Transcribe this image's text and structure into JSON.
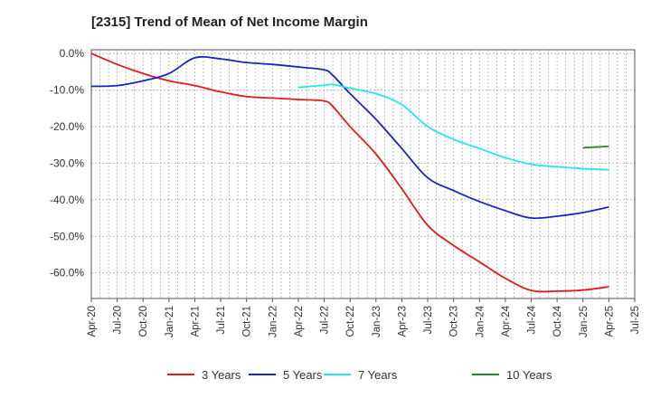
{
  "chart_data": {
    "type": "line",
    "title": "[2315]  Trend of Mean of Net Income Margin",
    "xlabel": "",
    "ylabel": "",
    "x_ticks": [
      "Apr-20",
      "Jul-20",
      "Oct-20",
      "Jan-21",
      "Apr-21",
      "Jul-21",
      "Oct-21",
      "Jan-22",
      "Apr-22",
      "Jul-22",
      "Oct-22",
      "Jan-23",
      "Apr-23",
      "Jul-23",
      "Oct-23",
      "Jan-24",
      "Apr-24",
      "Jul-24",
      "Oct-24",
      "Jan-25",
      "Apr-25",
      "Jul-25"
    ],
    "y_ticks": [
      "0.0%",
      "-10.0%",
      "-20.0%",
      "-30.0%",
      "-40.0%",
      "-50.0%",
      "-60.0%"
    ],
    "y_tick_values": [
      0,
      -10,
      -20,
      -30,
      -40,
      -50,
      -60
    ],
    "ylim": [
      -67,
      1
    ],
    "grid": true,
    "legend_position": "bottom",
    "series": [
      {
        "name": "3 Years",
        "color": "#e8191a",
        "x": [
          "Apr-20",
          "Jul-20",
          "Oct-20",
          "Jan-21",
          "Apr-21",
          "Jul-21",
          "Oct-21",
          "Jan-22",
          "Apr-22",
          "Jul-22",
          "Aug-22",
          "Oct-22",
          "Jan-23",
          "Apr-23",
          "Jul-23",
          "Oct-23",
          "Jan-24",
          "Apr-24",
          "Jul-24",
          "Oct-24",
          "Jan-25",
          "Apr-25"
        ],
        "values": [
          0.0,
          -3.0,
          -5.5,
          -7.5,
          -8.8,
          -10.5,
          -11.8,
          -12.2,
          -12.6,
          -13.0,
          -14.5,
          -20.0,
          -27.5,
          -37.0,
          -47.0,
          -52.5,
          -57.0,
          -61.5,
          -64.8,
          -65.0,
          -64.7,
          -63.8
        ]
      },
      {
        "name": "5 Years",
        "color": "#1725c4",
        "x": [
          "Apr-20",
          "Jul-20",
          "Oct-20",
          "Jan-21",
          "Apr-21",
          "Jul-21",
          "Oct-21",
          "Jan-22",
          "Apr-22",
          "Jul-22",
          "Aug-22",
          "Oct-22",
          "Jan-23",
          "Apr-23",
          "Jul-23",
          "Oct-23",
          "Jan-24",
          "Apr-24",
          "Jul-24",
          "Oct-24",
          "Jan-25",
          "Apr-25"
        ],
        "values": [
          -9.0,
          -8.8,
          -7.5,
          -5.5,
          -1.2,
          -1.5,
          -2.5,
          -3.0,
          -3.7,
          -4.5,
          -6.0,
          -11.0,
          -18.0,
          -26.0,
          -34.0,
          -37.5,
          -40.5,
          -43.0,
          -45.0,
          -44.5,
          -43.5,
          -42.0
        ]
      },
      {
        "name": "7 Years",
        "color": "#21e8e8",
        "x": [
          "Apr-22",
          "Jul-22",
          "Aug-22",
          "Oct-22",
          "Jan-23",
          "Apr-23",
          "Jul-23",
          "Oct-23",
          "Jan-24",
          "Apr-24",
          "Jul-24",
          "Oct-24",
          "Jan-25",
          "Apr-25"
        ],
        "values": [
          -9.3,
          -8.7,
          -8.5,
          -9.5,
          -11.0,
          -14.0,
          -20.0,
          -23.5,
          -26.0,
          -28.5,
          -30.3,
          -31.0,
          -31.5,
          -31.8
        ]
      },
      {
        "name": "10 Years",
        "color": "#2a882a",
        "x": [
          "Jan-25",
          "Apr-25"
        ],
        "values": [
          -25.8,
          -25.4
        ]
      }
    ]
  }
}
